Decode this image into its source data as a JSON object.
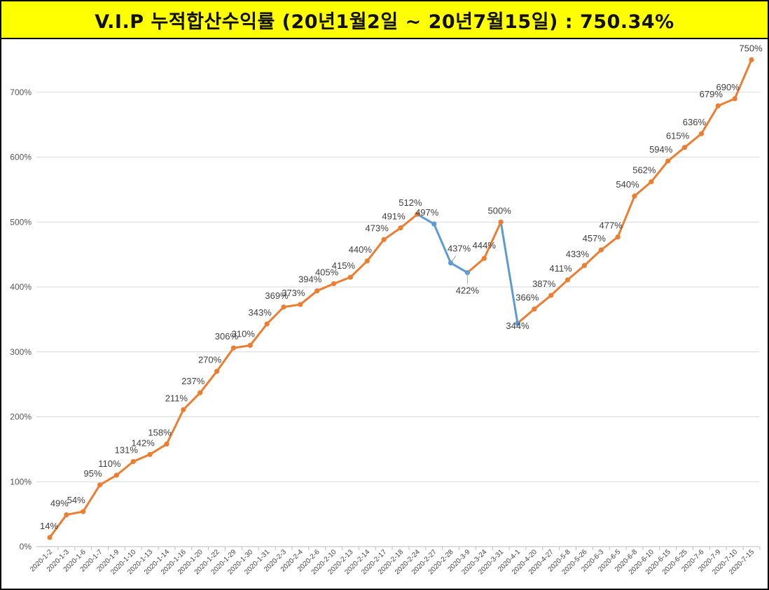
{
  "title": "V.I.P 누적합산수익률 (20년1월2일 ~ 20년7월15일) : 750.34%",
  "colors": {
    "title_bg": "#ffff00",
    "series_orange": "#ed7d31",
    "series_blue": "#5b9bd5",
    "grid": "#d9d9d9"
  },
  "chart_data": {
    "type": "line",
    "title": "V.I.P 누적합산수익률 (20년1월2일 ~ 20년7월15일) : 750.34%",
    "xlabel": "",
    "ylabel": "",
    "ylim": [
      0,
      750
    ],
    "yticks": [
      "0%",
      "100%",
      "200%",
      "300%",
      "400%",
      "500%",
      "600%",
      "700%"
    ],
    "grid": true,
    "legend": "none",
    "categories": [
      "2020-1-2",
      "2020-1-3",
      "2020-1-6",
      "2020-1-7",
      "2020-1-9",
      "2020-1-10",
      "2020-1-13",
      "2020-1-14",
      "2020-1-16",
      "2020-1-20",
      "2020-1-22",
      "2020-1-29",
      "2020-1-30",
      "2020-1-31",
      "2020-2-3",
      "2020-2-4",
      "2020-2-6",
      "2020-2-10",
      "2020-2-13",
      "2020-2-14",
      "2020-2-17",
      "2020-2-18",
      "2020-2-24",
      "2020-2-27",
      "2020-2-28",
      "2020-3-9",
      "2020-3-24",
      "2020-3-31",
      "2020-4-1",
      "2020-4-20",
      "2020-4-27",
      "2020-5-8",
      "2020-5-26",
      "2020-6-3",
      "2020-6-5",
      "2020-6-8",
      "2020-6-10",
      "2020-6-15",
      "2020-6-25",
      "2020-7-6",
      "2020-7-9",
      "2020-7-10",
      "2020-7-15"
    ],
    "values": [
      14,
      49,
      54,
      95,
      110,
      131,
      142,
      158,
      211,
      237,
      270,
      306,
      310,
      343,
      369,
      373,
      394,
      405,
      415,
      440,
      473,
      491,
      512,
      497,
      437,
      422,
      444,
      500,
      344,
      366,
      387,
      411,
      433,
      457,
      477,
      540,
      562,
      594,
      615,
      636,
      679,
      690,
      750
    ],
    "labels": [
      "14%",
      "49%",
      "54%",
      "95%",
      "110%",
      "131%",
      "142%",
      "158%",
      "211%",
      "237%",
      "270%",
      "306%",
      "310%",
      "343%",
      "369%",
      "373%",
      "394%",
      "405%",
      "415%",
      "440%",
      "473%",
      "491%",
      "512%",
      "497%",
      "437%",
      "422%",
      "444%",
      "500%",
      "344%",
      "366%",
      "387%",
      "411%",
      "433%",
      "457%",
      "477%",
      "540%",
      "562%",
      "594%",
      "615%",
      "636%",
      "679%",
      "690%",
      "750%"
    ],
    "blue_segments": [
      [
        22,
        23
      ],
      [
        23,
        24
      ],
      [
        24,
        25
      ],
      [
        27,
        28
      ]
    ],
    "blue_points": [
      23,
      24,
      25,
      28
    ]
  }
}
